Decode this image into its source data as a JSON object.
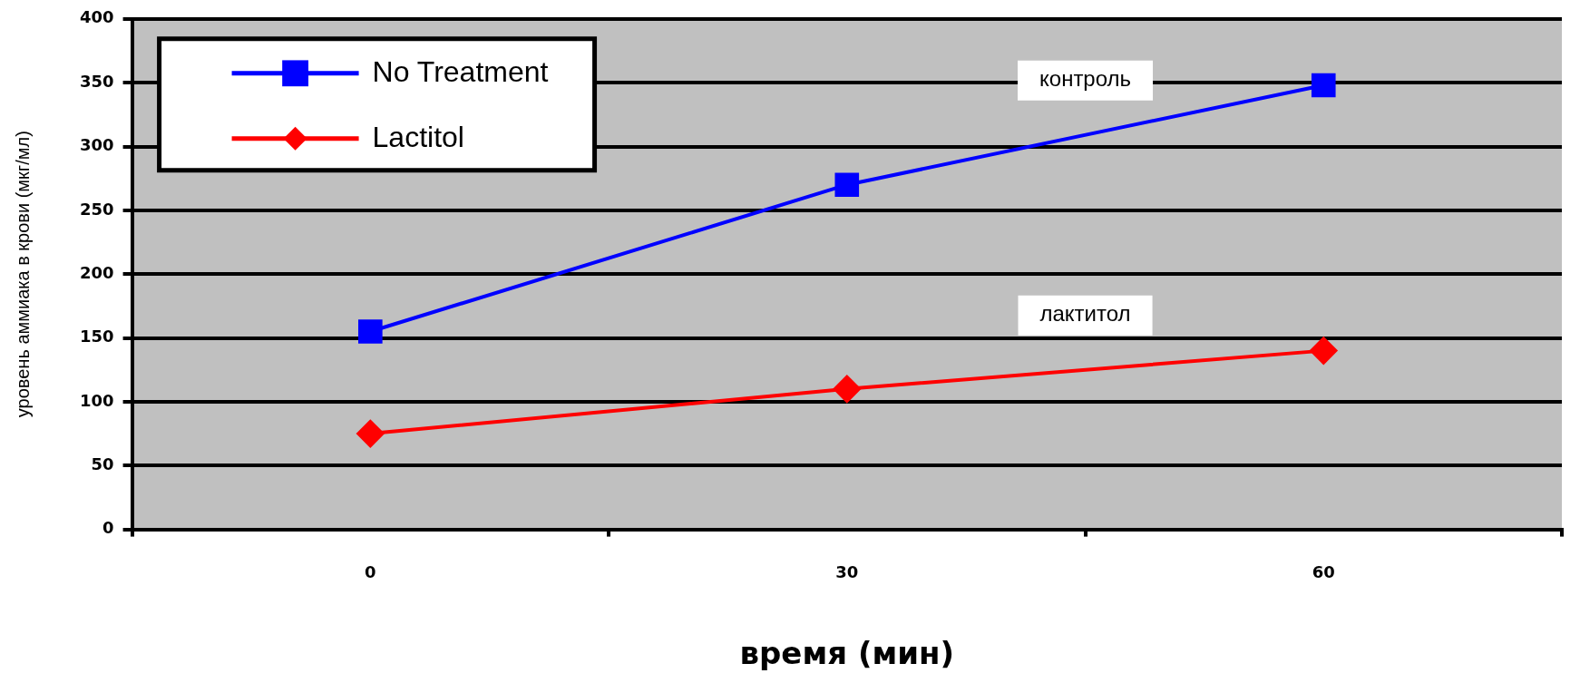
{
  "chart_data": {
    "type": "line",
    "xlabel": "время (мин)",
    "ylabel": "уровень аммиака в крови (мкг/мл)",
    "categories": [
      "0",
      "30",
      "60"
    ],
    "series": [
      {
        "name": "No Treatment",
        "color": "#0000ff",
        "values": [
          155,
          270,
          348
        ],
        "marker": "square"
      },
      {
        "name": "Lactitol",
        "color": "#ff0000",
        "values": [
          75,
          110,
          140
        ],
        "marker": "diamond"
      }
    ],
    "ylim": [
      0,
      400
    ],
    "yticks": [
      0,
      50,
      100,
      150,
      200,
      250,
      300,
      350,
      400
    ],
    "grid": "y",
    "legend": "top left",
    "annotations": [
      "контроль",
      "лактитол"
    ]
  }
}
